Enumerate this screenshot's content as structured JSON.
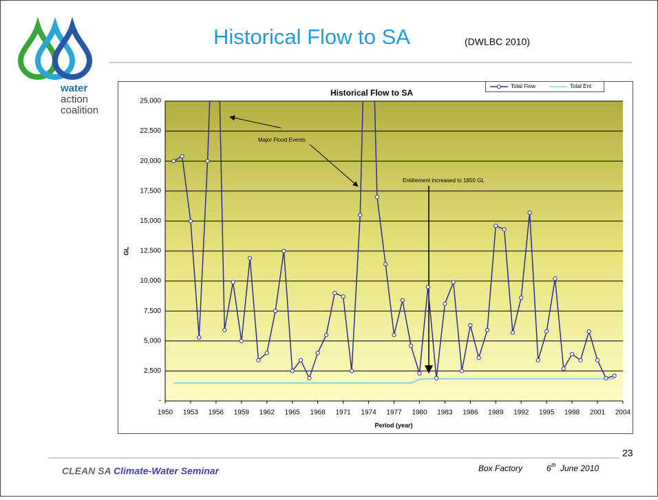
{
  "slide": {
    "title": "Historical Flow to SA",
    "source": "(DWLBC 2010)",
    "logo": [
      "water",
      "action",
      "coalition"
    ],
    "footer": {
      "org": "CLEAN SA",
      "event": "Climate-Water Seminar",
      "place": "Box Factory",
      "day": "6",
      "day_suffix": "th",
      "date": "June 2010",
      "page": "23"
    }
  },
  "chart_data": {
    "type": "line",
    "title": "Historical Flow to SA",
    "x_label": "Period (year)",
    "y_label": "GL",
    "annotations": [
      "Major Flood Events",
      "Entitlement increased to 1850 GL"
    ],
    "x": [
      1951,
      1952,
      1953,
      1954,
      1955,
      1956,
      1957,
      1958,
      1959,
      1960,
      1961,
      1962,
      1963,
      1964,
      1965,
      1966,
      1967,
      1968,
      1969,
      1970,
      1971,
      1972,
      1973,
      1974,
      1975,
      1976,
      1977,
      1978,
      1979,
      1980,
      1981,
      1982,
      1983,
      1984,
      1985,
      1986,
      1987,
      1988,
      1989,
      1990,
      1991,
      1992,
      1993,
      1994,
      1995,
      1996,
      1997,
      1998,
      1999,
      2000,
      2001,
      2002,
      2003
    ],
    "series": [
      {
        "name": "Total Flow",
        "color": "#2e3192",
        "marker": true,
        "values": [
          20000,
          20400,
          15000,
          5300,
          20000,
          40000,
          5900,
          9900,
          5000,
          11900,
          3400,
          4000,
          7500,
          12500,
          2500,
          3400,
          1900,
          4000,
          5500,
          9000,
          8700,
          2500,
          15500,
          45000,
          17000,
          11400,
          5500,
          8400,
          4600,
          2300,
          9500,
          1900,
          8100,
          9900,
          2500,
          6300,
          3600,
          5900,
          14600,
          14300,
          5700,
          8600,
          15700,
          3400,
          5800,
          10200,
          2700,
          3900,
          3400,
          5800,
          3400,
          1900,
          2100
        ]
      },
      {
        "name": "Total Ent",
        "color": "#8fd0f0",
        "marker": false,
        "values": [
          1500,
          1500,
          1500,
          1500,
          1500,
          1500,
          1500,
          1500,
          1500,
          1500,
          1500,
          1500,
          1500,
          1500,
          1500,
          1500,
          1500,
          1500,
          1500,
          1500,
          1500,
          1500,
          1500,
          1500,
          1500,
          1500,
          1500,
          1500,
          1500,
          1800,
          1850,
          1850,
          1850,
          1850,
          1850,
          1850,
          1850,
          1850,
          1850,
          1850,
          1850,
          1850,
          1850,
          1850,
          1850,
          1850,
          1850,
          1850,
          1850,
          1850,
          1850,
          1850,
          1850
        ]
      }
    ],
    "xlim": [
      1950,
      2004
    ],
    "xticks": [
      1950,
      1953,
      1956,
      1959,
      1962,
      1965,
      1968,
      1971,
      1974,
      1977,
      1980,
      1983,
      1986,
      1989,
      1992,
      1995,
      1998,
      2001,
      2004
    ],
    "ylim": [
      0,
      25000
    ],
    "yticks": [
      {
        "value": 0,
        "label": "-"
      },
      {
        "value": 2500,
        "label": "2,500"
      },
      {
        "value": 5000,
        "label": "5,000"
      },
      {
        "value": 7500,
        "label": "7,500"
      },
      {
        "value": 10000,
        "label": "10,000"
      },
      {
        "value": 12500,
        "label": "12,500"
      },
      {
        "value": 15000,
        "label": "15,000"
      },
      {
        "value": 17500,
        "label": "17,500"
      },
      {
        "value": 20000,
        "label": "20,000"
      },
      {
        "value": 22500,
        "label": "22,500"
      },
      {
        "value": 25000,
        "label": "25,000"
      }
    ],
    "grid": true,
    "legend": "top-right"
  }
}
